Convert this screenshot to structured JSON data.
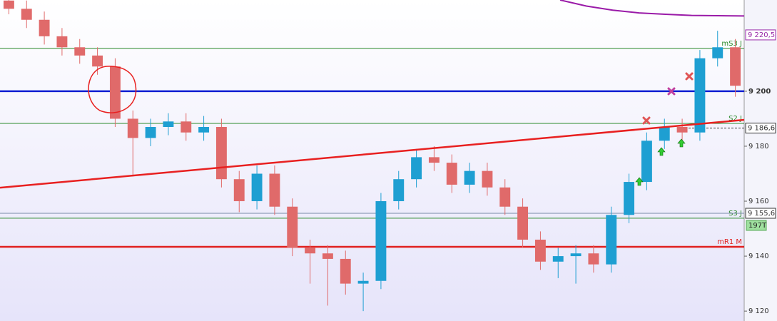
{
  "chart_data": {
    "type": "candlestick",
    "ylim": [
      9116.4,
      9233.2
    ],
    "yticks": [
      {
        "value": 9120,
        "label": "9 120"
      },
      {
        "value": 9140,
        "label": "9 140"
      },
      {
        "value": 9160,
        "label": "9 160"
      },
      {
        "value": 9180,
        "label": "9 180"
      },
      {
        "value": 9200,
        "label": "9 200"
      }
    ],
    "up_color": "#1e9fd2",
    "down_color": "#e06a6a",
    "open": [
      9233,
      9230,
      9226,
      9220,
      9216,
      9213,
      9209,
      9190,
      9183,
      9187,
      9189,
      9185,
      9187,
      9168,
      9160,
      9170,
      9158,
      9143,
      9141,
      9139,
      9130,
      9131,
      9160,
      9168,
      9176,
      9174,
      9166,
      9171,
      9165,
      9158,
      9146,
      9138,
      9140,
      9141,
      9137,
      9155,
      9167,
      9182,
      9187,
      9185,
      9212,
      9216
    ],
    "close": [
      9230,
      9226,
      9220,
      9216,
      9213,
      9209,
      9190,
      9183,
      9187,
      9189,
      9185,
      9187,
      9168,
      9160,
      9170,
      9158,
      9143,
      9141,
      9139,
      9130,
      9131,
      9160,
      9168,
      9176,
      9174,
      9166,
      9171,
      9165,
      9158,
      9146,
      9138,
      9140,
      9141,
      9137,
      9155,
      9167,
      9182,
      9187,
      9185,
      9212,
      9216,
      9202
    ],
    "high": [
      9236,
      9233,
      9229,
      9223,
      9219,
      9216,
      9212,
      9193,
      9190,
      9192,
      9192,
      9191,
      9190,
      9171,
      9173,
      9173,
      9161,
      9146,
      9144,
      9142,
      9134,
      9163,
      9171,
      9179,
      9180,
      9177,
      9174,
      9174,
      9168,
      9161,
      9149,
      9143,
      9144,
      9144,
      9158,
      9170,
      9185,
      9190,
      9190,
      9215,
      9222,
      9219
    ],
    "low": [
      9228,
      9223,
      9217,
      9213,
      9210,
      9206,
      9187,
      9169,
      9180,
      9184,
      9182,
      9182,
      9165,
      9156,
      9157,
      9155,
      9140,
      9130,
      9122,
      9126,
      9120,
      9128,
      9157,
      9165,
      9171,
      9163,
      9163,
      9162,
      9155,
      9143,
      9135,
      9132,
      9130,
      9134,
      9134,
      9152,
      9164,
      9179,
      9182,
      9182,
      9209,
      9198
    ],
    "levels": [
      {
        "name": "mS3 J",
        "value": 9215.6,
        "color": "#2a8a2a"
      },
      {
        "name": "S2 J",
        "value": 9188.3,
        "color": "#2a8a2a"
      },
      {
        "name": "S3 J",
        "value": 9153.8,
        "color": "#2a8a2a"
      },
      {
        "name": "mR1 M",
        "value": 9143.4,
        "color": "#e02020"
      }
    ],
    "blue_level": {
      "value": 9200,
      "color": "#0a1ed2"
    },
    "tags": [
      {
        "value": 9220.5,
        "label": "9 220,5",
        "color": "#9a2aa8"
      },
      {
        "value": 9186.6,
        "label": "9 186,6",
        "color": "#333333"
      },
      {
        "value": 9155.6,
        "label": "9 155,6",
        "color": "#333333"
      }
    ],
    "timer_label": "197T",
    "trendline": {
      "start": 9164.9,
      "end": 9189.6,
      "color": "#e82020"
    },
    "moving_average": {
      "color": "#9a1aa8",
      "values": [
        9233.2,
        9231.0,
        9229.5,
        9228.5,
        9228.0,
        9227.6,
        9227.5,
        9227.4
      ]
    }
  }
}
